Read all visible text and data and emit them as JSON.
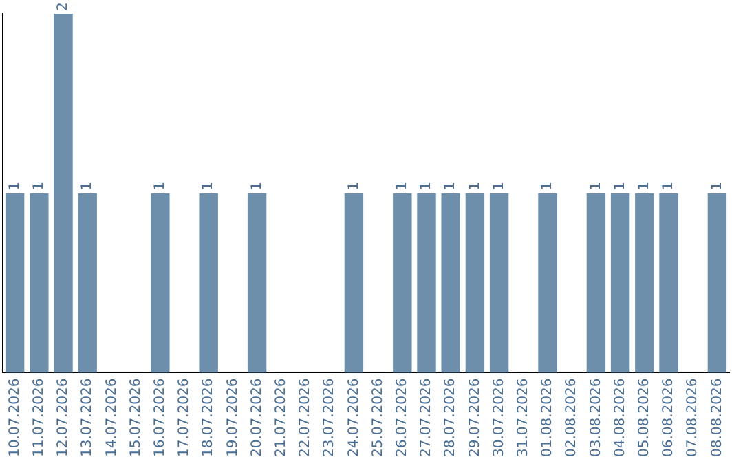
{
  "chart_data": {
    "type": "bar",
    "categories": [
      "10.07.2026",
      "11.07.2026",
      "12.07.2026",
      "13.07.2026",
      "14.07.2026",
      "15.07.2026",
      "16.07.2026",
      "17.07.2026",
      "18.07.2026",
      "19.07.2026",
      "20.07.2026",
      "21.07.2026",
      "22.07.2026",
      "23.07.2026",
      "24.07.2026",
      "25.07.2026",
      "26.07.2026",
      "27.07.2026",
      "28.07.2026",
      "29.07.2026",
      "30.07.2026",
      "31.07.2026",
      "01.08.2026",
      "02.08.2026",
      "03.08.2026",
      "04.08.2026",
      "05.08.2026",
      "06.08.2026",
      "07.08.2026",
      "08.08.2026"
    ],
    "values": [
      1,
      1,
      2,
      1,
      0,
      0,
      1,
      0,
      1,
      0,
      1,
      0,
      0,
      0,
      1,
      0,
      1,
      1,
      1,
      1,
      1,
      0,
      1,
      0,
      1,
      1,
      1,
      1,
      0,
      1
    ],
    "value_labels": [
      "1",
      "1",
      "2",
      "1",
      null,
      null,
      "1",
      null,
      "1",
      null,
      "1",
      null,
      null,
      null,
      "1",
      null,
      "1",
      "1",
      "1",
      "1",
      "1",
      null,
      "1",
      null,
      "1",
      "1",
      "1",
      "1",
      null,
      "1"
    ],
    "color": "#6e8fab",
    "tick_labels": "x",
    "grid": false,
    "legend": false
  }
}
